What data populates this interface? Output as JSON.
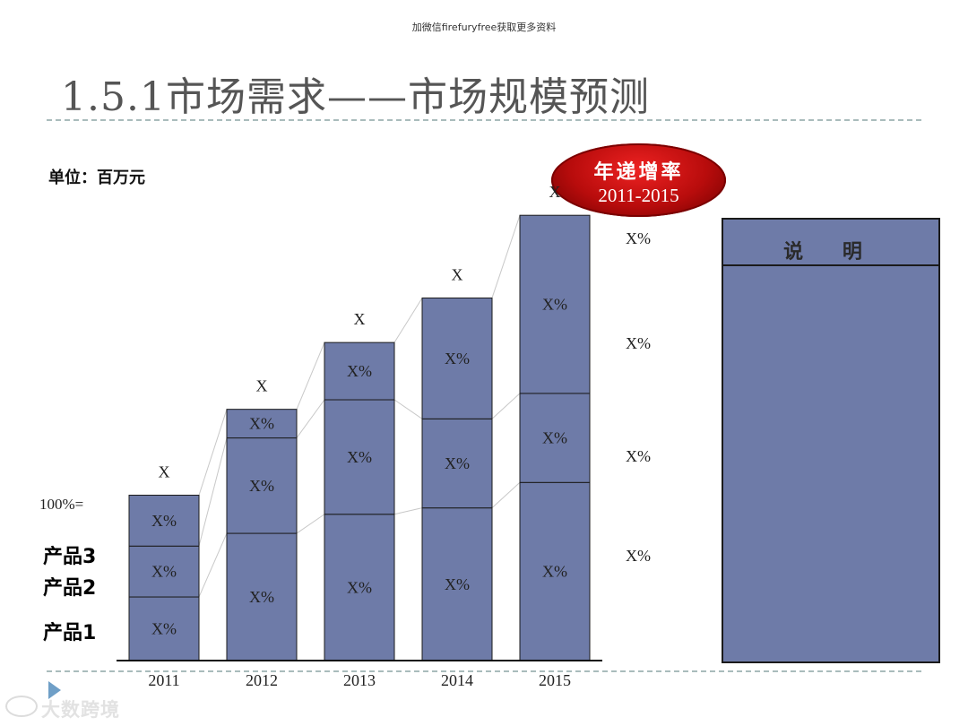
{
  "watermark_top": "加微信firefuryfree获取更多资料",
  "page_title": "1.5.1市场需求——市场规模预测",
  "unit_label": "单位：百万元",
  "cagr_badge": {
    "title": "年递增率",
    "years": "2011-2015"
  },
  "hundred_label": "100%=",
  "product_labels": [
    "产品3",
    "产品2",
    "产品1"
  ],
  "cagr_values": [
    "X%",
    "X%",
    "X%",
    "X%"
  ],
  "description_panel": {
    "title": "说 明"
  },
  "brand_text": "大数跨境",
  "colors": {
    "bar_fill": "#6e7ba8",
    "badge_red": "#b80c0c",
    "panel_fill": "#6e7ba8"
  },
  "chart_data": {
    "type": "bar",
    "stacked": true,
    "categories": [
      "2011",
      "2012",
      "2013",
      "2014",
      "2015"
    ],
    "series": [
      {
        "name": "产品1",
        "values": [
          1.0,
          2.0,
          2.3,
          2.4,
          2.8
        ],
        "labels": [
          "X%",
          "X%",
          "X%",
          "X%",
          "X%"
        ]
      },
      {
        "name": "产品2",
        "values": [
          0.8,
          1.5,
          1.8,
          1.4,
          1.4
        ],
        "labels": [
          "X%",
          "X%",
          "X%",
          "X%",
          "X%"
        ]
      },
      {
        "name": "产品3",
        "values": [
          0.8,
          0.45,
          0.9,
          1.9,
          2.8
        ],
        "labels": [
          "X%",
          "X%",
          "X%",
          "X%",
          "X%"
        ]
      }
    ],
    "totals": [
      "X",
      "X",
      "X",
      "X",
      "X"
    ],
    "ylim": [
      0,
      7.2
    ],
    "grid": false,
    "legend": "left"
  }
}
